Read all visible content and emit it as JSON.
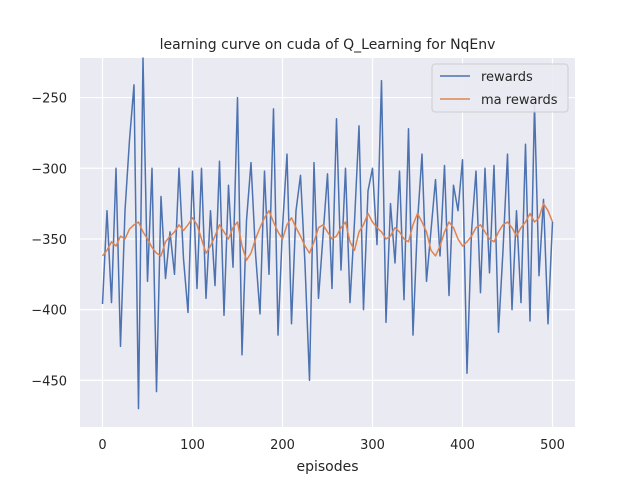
{
  "chart_data": {
    "type": "line",
    "title": "learning curve on cuda of Q_Learning for NqEnv",
    "xlabel": "episodes",
    "ylabel": "",
    "xlim": [
      -25,
      525
    ],
    "ylim": [
      -483,
      -222
    ],
    "xticks": [
      0,
      100,
      200,
      300,
      400,
      500
    ],
    "yticks": [
      -450,
      -400,
      -350,
      -300,
      -250
    ],
    "xtick_labels": [
      "0",
      "100",
      "200",
      "300",
      "400",
      "500"
    ],
    "ytick_labels": [
      "−450",
      "−400",
      "−350",
      "−300",
      "−250"
    ],
    "grid": true,
    "legend_position": "top-right",
    "colors": {
      "rewards": "#4c72b0",
      "ma_rewards": "#dd8452",
      "plot_bg": "#eaeaf2",
      "grid": "#ffffff"
    },
    "series": [
      {
        "name": "rewards",
        "x": [
          0,
          5,
          10,
          15,
          20,
          25,
          30,
          35,
          40,
          45,
          50,
          55,
          60,
          65,
          70,
          75,
          80,
          85,
          90,
          95,
          100,
          105,
          110,
          115,
          120,
          125,
          130,
          135,
          140,
          145,
          150,
          155,
          160,
          165,
          170,
          175,
          180,
          185,
          190,
          195,
          200,
          205,
          210,
          215,
          220,
          225,
          230,
          235,
          240,
          245,
          250,
          255,
          260,
          265,
          270,
          275,
          280,
          285,
          290,
          295,
          300,
          305,
          310,
          315,
          320,
          325,
          330,
          335,
          340,
          345,
          350,
          355,
          360,
          365,
          370,
          375,
          380,
          385,
          390,
          395,
          400,
          405,
          410,
          415,
          420,
          425,
          430,
          435,
          440,
          445,
          450,
          455,
          460,
          465,
          470,
          475,
          480,
          485,
          490,
          495,
          500
        ],
        "values": [
          -396,
          -330,
          -395,
          -300,
          -426,
          -330,
          -280,
          -241,
          -470,
          -222,
          -380,
          -300,
          -458,
          -320,
          -378,
          -345,
          -375,
          -300,
          -364,
          -402,
          -302,
          -385,
          -300,
          -392,
          -330,
          -383,
          -295,
          -404,
          -312,
          -370,
          -250,
          -432,
          -337,
          -296,
          -360,
          -403,
          -302,
          -375,
          -258,
          -418,
          -342,
          -290,
          -410,
          -330,
          -305,
          -368,
          -450,
          -296,
          -392,
          -348,
          -304,
          -385,
          -265,
          -372,
          -300,
          -395,
          -338,
          -270,
          -400,
          -316,
          -300,
          -354,
          -238,
          -409,
          -325,
          -367,
          -302,
          -393,
          -272,
          -418,
          -338,
          -290,
          -380,
          -344,
          -308,
          -362,
          -298,
          -390,
          -312,
          -330,
          -294,
          -445,
          -345,
          -302,
          -388,
          -300,
          -374,
          -298,
          -416,
          -358,
          -290,
          -400,
          -330,
          -395,
          -283,
          -408,
          -255,
          -376,
          -322,
          -410,
          -338
        ]
      },
      {
        "name": "ma rewards",
        "x": [
          0,
          5,
          10,
          15,
          20,
          25,
          30,
          35,
          40,
          45,
          50,
          55,
          60,
          65,
          70,
          75,
          80,
          85,
          90,
          95,
          100,
          105,
          110,
          115,
          120,
          125,
          130,
          135,
          140,
          145,
          150,
          155,
          160,
          165,
          170,
          175,
          180,
          185,
          190,
          195,
          200,
          205,
          210,
          215,
          220,
          225,
          230,
          235,
          240,
          245,
          250,
          255,
          260,
          265,
          270,
          275,
          280,
          285,
          290,
          295,
          300,
          305,
          310,
          315,
          320,
          325,
          330,
          335,
          340,
          345,
          350,
          355,
          360,
          365,
          370,
          375,
          380,
          385,
          390,
          395,
          400,
          405,
          410,
          415,
          420,
          425,
          430,
          435,
          440,
          445,
          450,
          455,
          460,
          465,
          470,
          475,
          480,
          485,
          490,
          495,
          500
        ],
        "values": [
          -362,
          -358,
          -352,
          -355,
          -348,
          -350,
          -343,
          -340,
          -338,
          -345,
          -350,
          -356,
          -360,
          -362,
          -352,
          -348,
          -345,
          -340,
          -344,
          -340,
          -335,
          -340,
          -350,
          -360,
          -355,
          -348,
          -340,
          -345,
          -350,
          -342,
          -338,
          -355,
          -365,
          -360,
          -350,
          -342,
          -335,
          -330,
          -338,
          -345,
          -350,
          -340,
          -335,
          -342,
          -348,
          -355,
          -360,
          -352,
          -342,
          -340,
          -345,
          -350,
          -348,
          -342,
          -338,
          -352,
          -358,
          -345,
          -340,
          -332,
          -338,
          -342,
          -345,
          -350,
          -348,
          -342,
          -345,
          -350,
          -352,
          -340,
          -332,
          -338,
          -345,
          -358,
          -362,
          -355,
          -345,
          -338,
          -342,
          -350,
          -355,
          -352,
          -348,
          -342,
          -340,
          -345,
          -350,
          -352,
          -345,
          -340,
          -338,
          -342,
          -348,
          -342,
          -338,
          -332,
          -338,
          -335,
          -325,
          -330,
          -338
        ]
      }
    ]
  }
}
